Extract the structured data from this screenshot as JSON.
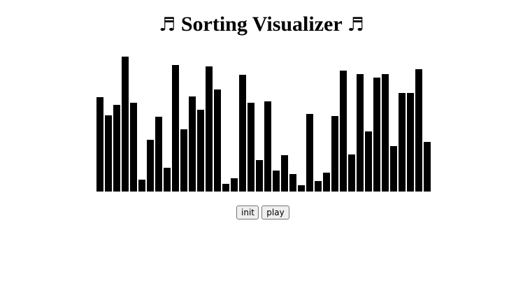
{
  "header": {
    "title": "Sorting Visualizer",
    "note_left": "♬",
    "note_right": "♬"
  },
  "colors": {
    "bar": "#000000",
    "background": "#ffffff"
  },
  "visualizer": {
    "bar_values": [
      135,
      109,
      124,
      193,
      127,
      17,
      74,
      107,
      34,
      181,
      89,
      136,
      117,
      179,
      146,
      11,
      19,
      167,
      127,
      45,
      129,
      30,
      52,
      25,
      9,
      111,
      15,
      27,
      108,
      173,
      53,
      168,
      86,
      163,
      168,
      65,
      141,
      141,
      175,
      71
    ],
    "max_value": 200
  },
  "controls": {
    "init_label": "init",
    "play_label": "play"
  }
}
